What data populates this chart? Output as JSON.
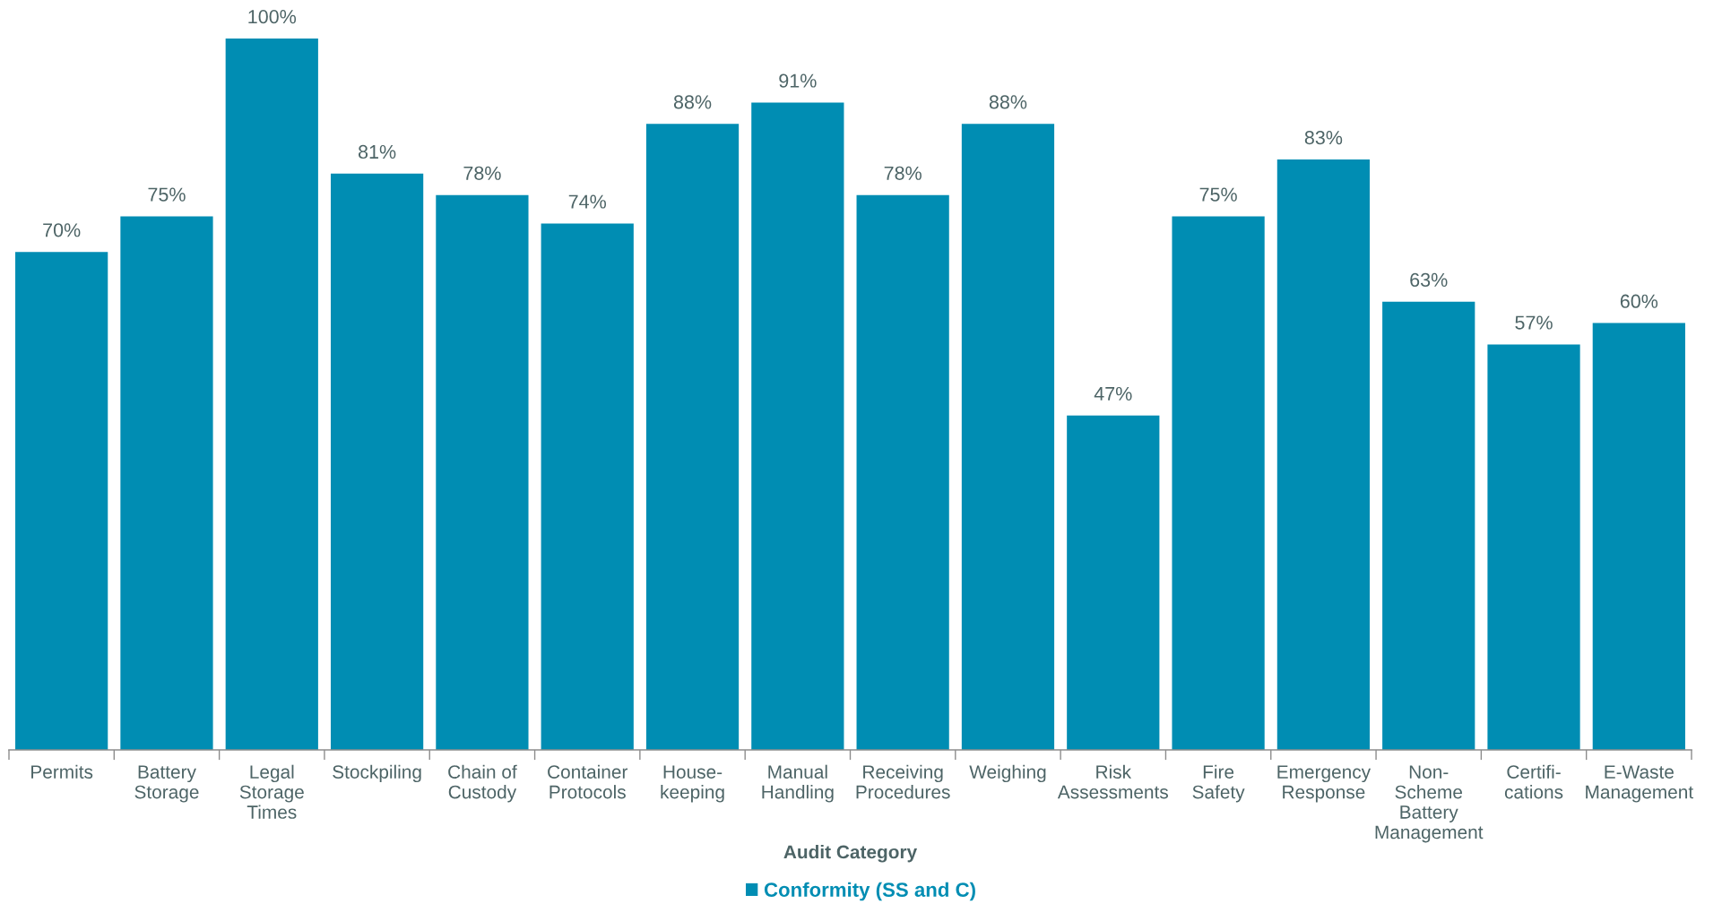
{
  "chart_data": {
    "type": "bar",
    "xlabel": "Audit Category",
    "categories": [
      "Permits",
      "Battery\nStorage",
      "Legal\nStorage\nTimes",
      "Stockpiling",
      "Chain of\nCustody",
      "Container\nProtocols",
      "House-\nkeeping",
      "Manual\nHandling",
      "Receiving\nProcedures",
      "Weighing",
      "Risk\nAssessments",
      "Fire\nSafety",
      "Emergency\nResponse",
      "Non-\nScheme\nBattery\nManagement",
      "Certifi-\ncations",
      "E-Waste\nManagement"
    ],
    "series": [
      {
        "name": "Conformity (SS and C)",
        "color": "#008db3",
        "values": [
          70,
          75,
          100,
          81,
          78,
          74,
          88,
          91,
          78,
          88,
          47,
          75,
          83,
          63,
          57,
          60
        ],
        "value_labels": [
          "70%",
          "75%",
          "100%",
          "81%",
          "78%",
          "74%",
          "88%",
          "91%",
          "78%",
          "88%",
          "47%",
          "75%",
          "83%",
          "63%",
          "57%",
          "60%"
        ]
      }
    ],
    "legend": "bottom"
  }
}
